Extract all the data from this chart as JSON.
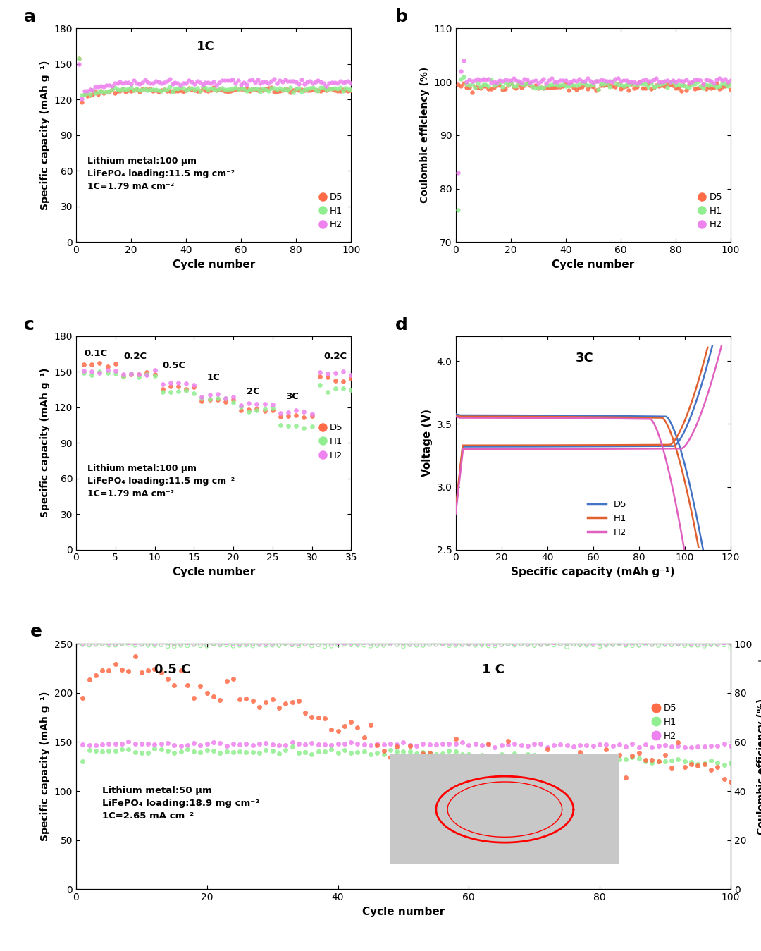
{
  "colors": {
    "D5": "#FF6B47",
    "H1": "#90EE90",
    "H2": "#EE82EE"
  },
  "line_colors": {
    "D5": "#4472C4",
    "H1": "#E06030",
    "H2": "#E060C0"
  },
  "panel_a": {
    "title": "1C",
    "xlabel": "Cycle number",
    "ylabel": "Specific capacity (mAh g⁻¹)",
    "ylim": [
      0,
      180
    ],
    "yticks": [
      0,
      30,
      60,
      90,
      120,
      150,
      180
    ],
    "xlim": [
      0,
      100
    ],
    "xticks": [
      0,
      20,
      40,
      60,
      80,
      100
    ],
    "annotation": "Lithium metal:100 μm\nLiFePO₄ loading:11.5 mg cm⁻²\n1C=1.79 mA cm⁻²"
  },
  "panel_b": {
    "xlabel": "Cycle number",
    "ylabel": "Coulombic efficiency (%)",
    "ylim": [
      70,
      110
    ],
    "yticks": [
      70,
      80,
      90,
      100,
      110
    ],
    "xlim": [
      0,
      100
    ],
    "xticks": [
      0,
      20,
      40,
      60,
      80,
      100
    ]
  },
  "panel_c": {
    "xlabel": "Cycle number",
    "ylabel": "Specific capacity (mAh g⁻¹)",
    "ylim": [
      0,
      180
    ],
    "yticks": [
      0,
      30,
      60,
      90,
      120,
      150,
      180
    ],
    "xlim": [
      0,
      35
    ],
    "xticks": [
      0,
      5,
      10,
      15,
      20,
      25,
      30,
      35
    ],
    "annotation": "Lithium metal:100 μm\nLiFePO₄ loading:11.5 mg cm⁻²\n1C=1.79 mA cm⁻²",
    "rate_labels": [
      "0.1C",
      "0.2C",
      "0.5C",
      "1C",
      "2C",
      "3C",
      "0.2C"
    ],
    "rate_x": [
      2.5,
      7.5,
      12.5,
      17.5,
      22.5,
      27.5,
      33.0
    ],
    "rate_y": [
      163,
      161,
      153,
      143,
      131,
      127,
      161
    ]
  },
  "panel_d": {
    "title": "3C",
    "xlabel": "Specific capacity (mAh g⁻¹)",
    "ylabel": "Voltage (V)",
    "ylim": [
      2.5,
      4.2
    ],
    "yticks": [
      2.5,
      3.0,
      3.5,
      4.0
    ],
    "xlim": [
      0,
      120
    ],
    "xticks": [
      0,
      20,
      40,
      60,
      80,
      100,
      120
    ]
  },
  "panel_e": {
    "xlabel": "Cycle number",
    "ylabel": "Specific capacity (mAh g⁻¹)",
    "ylabel2": "Coulombic efficiency (%)",
    "ylim": [
      0,
      250
    ],
    "yticks": [
      0,
      50,
      100,
      150,
      200,
      250
    ],
    "ylim2": [
      0,
      100
    ],
    "yticks2": [
      0,
      20,
      40,
      60,
      80,
      100
    ],
    "xlim": [
      0,
      100
    ],
    "xticks": [
      0,
      20,
      40,
      60,
      80,
      100
    ],
    "annotation": "Lithium metal:50 μm\nLiFePO₄ loading:18.9 mg cm⁻²\n1C=2.65 mA cm⁻²",
    "label_05C": "0.5 C",
    "label_1C": "1 C"
  }
}
